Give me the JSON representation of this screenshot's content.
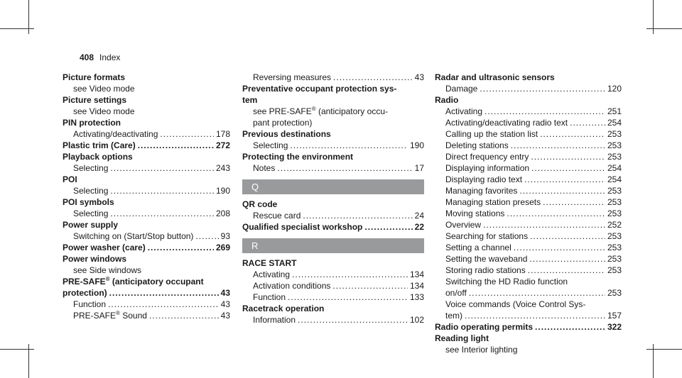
{
  "header": {
    "page_number": "408",
    "section": "Index"
  },
  "column1": [
    {
      "type": "h",
      "text": "Picture formats"
    },
    {
      "type": "s",
      "text": "see Video mode"
    },
    {
      "type": "h",
      "text": "Picture settings"
    },
    {
      "type": "s",
      "text": "see Video mode"
    },
    {
      "type": "h",
      "text": "PIN protection"
    },
    {
      "type": "sp",
      "text": "Activating/deactivating",
      "page": "178"
    },
    {
      "type": "hp",
      "text": "Plastic trim (Care)",
      "page": "272"
    },
    {
      "type": "h",
      "text": "Playback options"
    },
    {
      "type": "sp",
      "text": "Selecting",
      "page": "243"
    },
    {
      "type": "h",
      "text": "POI"
    },
    {
      "type": "sp",
      "text": "Selecting",
      "page": "190"
    },
    {
      "type": "h",
      "text": "POI symbols"
    },
    {
      "type": "sp",
      "text": "Selecting",
      "page": "208"
    },
    {
      "type": "h",
      "text": "Power supply"
    },
    {
      "type": "sp",
      "text": "Switching on (Start/Stop button)",
      "page": "93"
    },
    {
      "type": "hp",
      "text": "Power washer (care)",
      "page": "269"
    },
    {
      "type": "h",
      "text": "Power windows"
    },
    {
      "type": "s",
      "text": "see Side windows"
    },
    {
      "type": "h",
      "text": "PRE-SAFE",
      "sup": "®",
      "text2": " (anticipatory occupant"
    },
    {
      "type": "hp",
      "text": "protection)",
      "page": "43"
    },
    {
      "type": "sp",
      "text": "Function",
      "page": "43"
    },
    {
      "type": "sp",
      "text": "PRE-SAFE",
      "sup": "®",
      "text2": " Sound",
      "page": "43"
    }
  ],
  "column2": [
    {
      "type": "sp",
      "text": "Reversing measures",
      "page": "43"
    },
    {
      "type": "h",
      "text": "Preventative occupant protection sys-"
    },
    {
      "type": "h",
      "text": "tem"
    },
    {
      "type": "s",
      "text": "see PRE-SAFE",
      "sup": "®",
      "text2": " (anticipatory occu-"
    },
    {
      "type": "s",
      "text": "pant protection)"
    },
    {
      "type": "h",
      "text": "Previous destinations"
    },
    {
      "type": "sp",
      "text": "Selecting",
      "page": "190"
    },
    {
      "type": "h",
      "text": "Protecting the environment"
    },
    {
      "type": "sp",
      "text": "Notes",
      "page": "17"
    },
    {
      "type": "letter",
      "text": "Q"
    },
    {
      "type": "h",
      "text": "QR code"
    },
    {
      "type": "sp",
      "text": "Rescue card",
      "page": "24"
    },
    {
      "type": "hp",
      "text": "Qualified specialist workshop",
      "page": "22"
    },
    {
      "type": "letter",
      "text": "R"
    },
    {
      "type": "h",
      "text": "RACE START"
    },
    {
      "type": "sp",
      "text": "Activating",
      "page": "134"
    },
    {
      "type": "sp",
      "text": "Activation conditions",
      "page": "134"
    },
    {
      "type": "sp",
      "text": "Function",
      "page": "133"
    },
    {
      "type": "h",
      "text": "Racetrack operation"
    },
    {
      "type": "sp",
      "text": "Information",
      "page": "102"
    }
  ],
  "column3": [
    {
      "type": "h",
      "text": "Radar and ultrasonic sensors"
    },
    {
      "type": "sp",
      "text": "Damage",
      "page": "120"
    },
    {
      "type": "h",
      "text": "Radio"
    },
    {
      "type": "sp",
      "text": "Activating",
      "page": "251"
    },
    {
      "type": "sp",
      "text": "Activating/deactivating radio text",
      "page": "254"
    },
    {
      "type": "sp",
      "text": "Calling up the station list",
      "page": "253"
    },
    {
      "type": "sp",
      "text": "Deleting stations",
      "page": "253"
    },
    {
      "type": "sp",
      "text": "Direct frequency entry",
      "page": "253"
    },
    {
      "type": "sp",
      "text": "Displaying information",
      "page": "254"
    },
    {
      "type": "sp",
      "text": "Displaying radio text",
      "page": "254"
    },
    {
      "type": "sp",
      "text": "Managing favorites",
      "page": "253"
    },
    {
      "type": "sp",
      "text": "Managing station presets",
      "page": "253"
    },
    {
      "type": "sp",
      "text": "Moving stations",
      "page": "253"
    },
    {
      "type": "sp",
      "text": "Overview",
      "page": "252"
    },
    {
      "type": "sp",
      "text": "Searching for stations",
      "page": "253"
    },
    {
      "type": "sp",
      "text": "Setting a channel",
      "page": "253"
    },
    {
      "type": "sp",
      "text": "Setting the waveband",
      "page": "253"
    },
    {
      "type": "sp",
      "text": "Storing radio stations",
      "page": "253"
    },
    {
      "type": "s",
      "text": "Switching the HD Radio function"
    },
    {
      "type": "sp",
      "text": "on/off",
      "page": "253"
    },
    {
      "type": "s",
      "text": "Voice commands (Voice Control Sys-"
    },
    {
      "type": "sp",
      "text": "tem)",
      "page": "157"
    },
    {
      "type": "hp",
      "text": "Radio operating permits",
      "page": "322"
    },
    {
      "type": "h",
      "text": "Reading light"
    },
    {
      "type": "s",
      "text": "see Interior lighting"
    }
  ]
}
